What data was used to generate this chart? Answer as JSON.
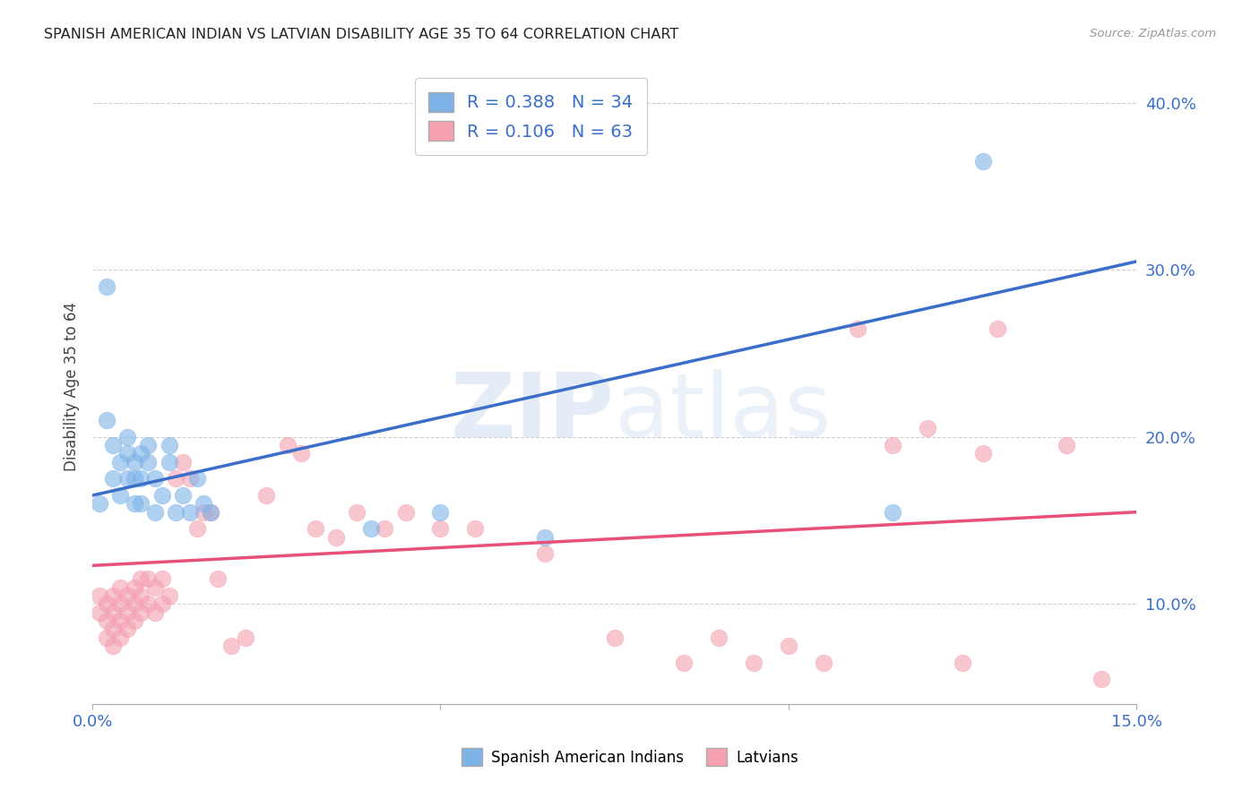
{
  "title": "SPANISH AMERICAN INDIAN VS LATVIAN DISABILITY AGE 35 TO 64 CORRELATION CHART",
  "source": "Source: ZipAtlas.com",
  "ylabel": "Disability Age 35 to 64",
  "xlim": [
    0.0,
    0.15
  ],
  "ylim": [
    0.04,
    0.42
  ],
  "xticks": [
    0.0,
    0.05,
    0.1,
    0.15
  ],
  "xtick_labels": [
    "0.0%",
    "",
    "",
    "15.0%"
  ],
  "yticks": [
    0.1,
    0.2,
    0.3,
    0.4
  ],
  "ytick_labels": [
    "10.0%",
    "20.0%",
    "30.0%",
    "40.0%"
  ],
  "blue_R": 0.388,
  "blue_N": 34,
  "pink_R": 0.106,
  "pink_N": 63,
  "blue_color": "#7EB3E8",
  "pink_color": "#F4A0B0",
  "blue_line_color": "#3A6EC8",
  "pink_line_color": "#E8507A",
  "watermark": "ZIPatlas",
  "legend_label_blue": "Spanish American Indians",
  "legend_label_pink": "Latvians",
  "blue_points_x": [
    0.001,
    0.002,
    0.002,
    0.003,
    0.003,
    0.004,
    0.004,
    0.005,
    0.005,
    0.005,
    0.006,
    0.006,
    0.006,
    0.007,
    0.007,
    0.007,
    0.008,
    0.008,
    0.009,
    0.009,
    0.01,
    0.011,
    0.011,
    0.012,
    0.013,
    0.014,
    0.015,
    0.016,
    0.017,
    0.04,
    0.05,
    0.065,
    0.115,
    0.128
  ],
  "blue_points_y": [
    0.16,
    0.29,
    0.21,
    0.175,
    0.195,
    0.165,
    0.185,
    0.175,
    0.19,
    0.2,
    0.16,
    0.175,
    0.185,
    0.16,
    0.175,
    0.19,
    0.185,
    0.195,
    0.155,
    0.175,
    0.165,
    0.185,
    0.195,
    0.155,
    0.165,
    0.155,
    0.175,
    0.16,
    0.155,
    0.145,
    0.155,
    0.14,
    0.155,
    0.365
  ],
  "pink_points_x": [
    0.001,
    0.001,
    0.002,
    0.002,
    0.002,
    0.003,
    0.003,
    0.003,
    0.003,
    0.004,
    0.004,
    0.004,
    0.004,
    0.005,
    0.005,
    0.005,
    0.006,
    0.006,
    0.006,
    0.007,
    0.007,
    0.007,
    0.008,
    0.008,
    0.009,
    0.009,
    0.01,
    0.01,
    0.011,
    0.012,
    0.013,
    0.014,
    0.015,
    0.016,
    0.017,
    0.018,
    0.02,
    0.022,
    0.025,
    0.028,
    0.03,
    0.032,
    0.035,
    0.038,
    0.042,
    0.045,
    0.05,
    0.055,
    0.065,
    0.075,
    0.085,
    0.09,
    0.095,
    0.1,
    0.105,
    0.11,
    0.115,
    0.12,
    0.125,
    0.128,
    0.13,
    0.14,
    0.145
  ],
  "pink_points_y": [
    0.095,
    0.105,
    0.08,
    0.09,
    0.1,
    0.075,
    0.085,
    0.095,
    0.105,
    0.08,
    0.09,
    0.1,
    0.11,
    0.085,
    0.095,
    0.105,
    0.09,
    0.1,
    0.11,
    0.095,
    0.105,
    0.115,
    0.1,
    0.115,
    0.095,
    0.11,
    0.1,
    0.115,
    0.105,
    0.175,
    0.185,
    0.175,
    0.145,
    0.155,
    0.155,
    0.115,
    0.075,
    0.08,
    0.165,
    0.195,
    0.19,
    0.145,
    0.14,
    0.155,
    0.145,
    0.155,
    0.145,
    0.145,
    0.13,
    0.08,
    0.065,
    0.08,
    0.065,
    0.075,
    0.065,
    0.265,
    0.195,
    0.205,
    0.065,
    0.19,
    0.265,
    0.195,
    0.055
  ],
  "background_color": "#ffffff",
  "grid_color": "#d0d0d0",
  "blue_line_x0": 0.0,
  "blue_line_x1": 0.15,
  "blue_line_y0": 0.165,
  "blue_line_y1": 0.305,
  "pink_line_x0": 0.0,
  "pink_line_x1": 0.15,
  "pink_line_y0": 0.123,
  "pink_line_y1": 0.155
}
